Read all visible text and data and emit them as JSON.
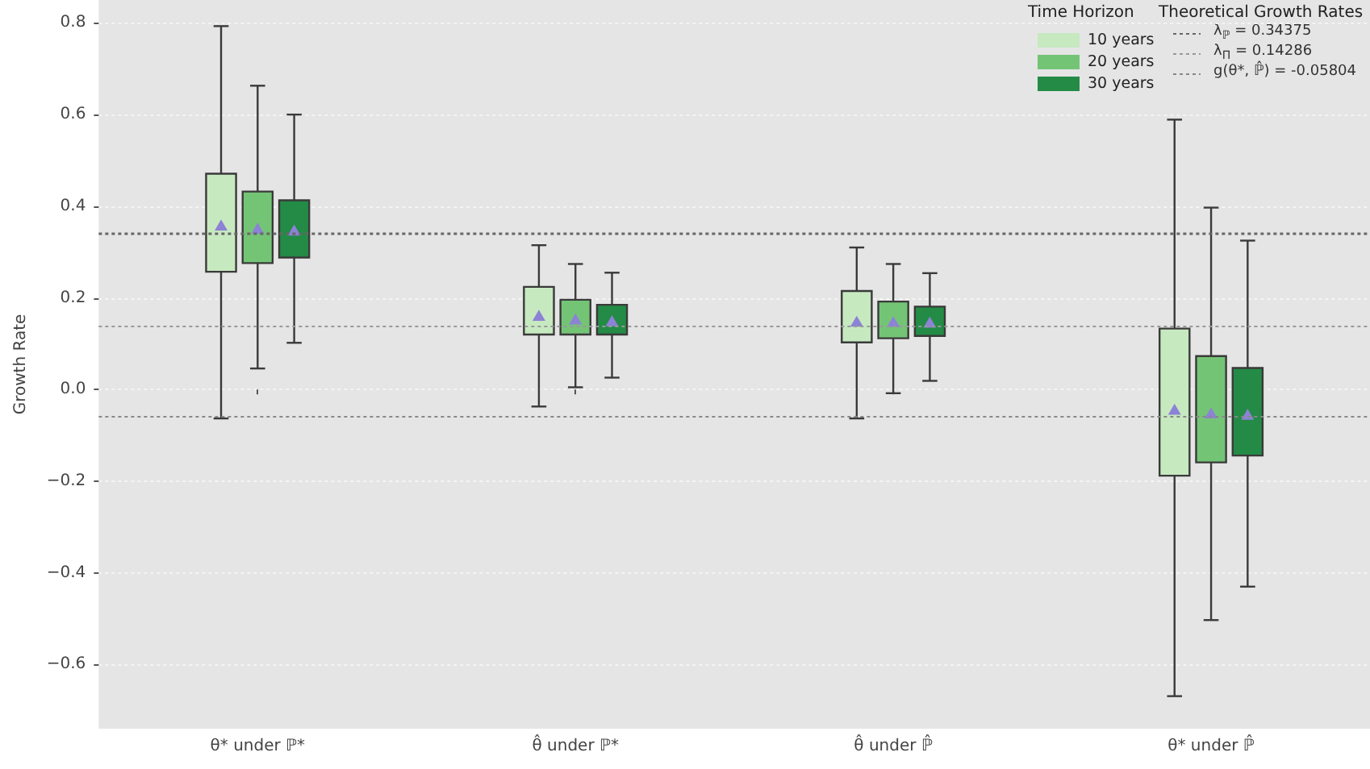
{
  "chart_data": {
    "type": "box",
    "ylabel": "Growth Rate",
    "legend_title": "Time Horizon",
    "legend": "top right",
    "grid": "y",
    "categories": [
      "θ* under ℙ*",
      "θ̂ under ℙ*",
      "θ̂ under ℙ̂",
      "θ* under ℙ̂"
    ],
    "ylim": [
      -0.74,
      0.85
    ],
    "yticks": [
      {
        "value": -0.6,
        "label": "−0.6"
      },
      {
        "value": -0.4,
        "label": "−0.4"
      },
      {
        "value": -0.2,
        "label": "−0.2"
      },
      {
        "value": 0,
        "label": "0.0"
      },
      {
        "value": 0.2,
        "label": "0.2"
      },
      {
        "value": 0.4,
        "label": "0.4"
      },
      {
        "value": 0.6,
        "label": "0.6"
      },
      {
        "value": 0.8,
        "label": "0.8"
      }
    ],
    "series": [
      {
        "name": "10 years",
        "color": "#c7e9c0",
        "boxes": [
          {
            "low": -0.063,
            "q1": 0.257,
            "q3": 0.471,
            "high": 0.793,
            "mean": 0.357
          },
          {
            "low": -0.037,
            "q1": 0.12,
            "q3": 0.224,
            "high": 0.315,
            "mean": 0.16
          },
          {
            "low": -0.063,
            "q1": 0.103,
            "q3": 0.215,
            "high": 0.31,
            "mean": 0.147
          },
          {
            "low": -0.669,
            "q1": -0.188,
            "q3": 0.133,
            "high": 0.589,
            "mean": -0.045
          }
        ]
      },
      {
        "name": "20 years",
        "color": "#74c476",
        "boxes": [
          {
            "low": 0.046,
            "q1": 0.276,
            "q3": 0.432,
            "high": 0.663,
            "mean": 0.35
          },
          {
            "low": 0.005,
            "q1": 0.12,
            "q3": 0.196,
            "high": 0.274,
            "mean": 0.152
          },
          {
            "low": -0.008,
            "q1": 0.112,
            "q3": 0.192,
            "high": 0.274,
            "mean": 0.146
          },
          {
            "low": -0.503,
            "q1": -0.159,
            "q3": 0.073,
            "high": 0.397,
            "mean": -0.053
          }
        ]
      },
      {
        "name": "30 years",
        "color": "#238b45",
        "boxes": [
          {
            "low": 0.102,
            "q1": 0.288,
            "q3": 0.413,
            "high": 0.6,
            "mean": 0.346
          },
          {
            "low": 0.026,
            "q1": 0.12,
            "q3": 0.185,
            "high": 0.255,
            "mean": 0.148
          },
          {
            "low": 0.019,
            "q1": 0.117,
            "q3": 0.181,
            "high": 0.254,
            "mean": 0.145
          },
          {
            "low": -0.43,
            "q1": -0.144,
            "q3": 0.047,
            "high": 0.325,
            "mean": -0.056
          }
        ]
      }
    ],
    "ref_lines": [
      {
        "axis": "y",
        "value": 0.34375,
        "label": "λ$_{ℙ}$ = 0.34375",
        "color": "#666666",
        "line_style": "dotted"
      },
      {
        "axis": "y",
        "value": 0.14286,
        "label": "λ$_{Π}$ = 0.14286",
        "color": "#999999",
        "line_style": "dotted"
      },
      {
        "axis": "y",
        "value": -0.05804,
        "label": "g(θ*, ℙ̂) = -0.05804",
        "color": "#888888",
        "line_style": "dotted"
      }
    ],
    "annotations": [
      "Theoretical Growth Rates"
    ]
  }
}
